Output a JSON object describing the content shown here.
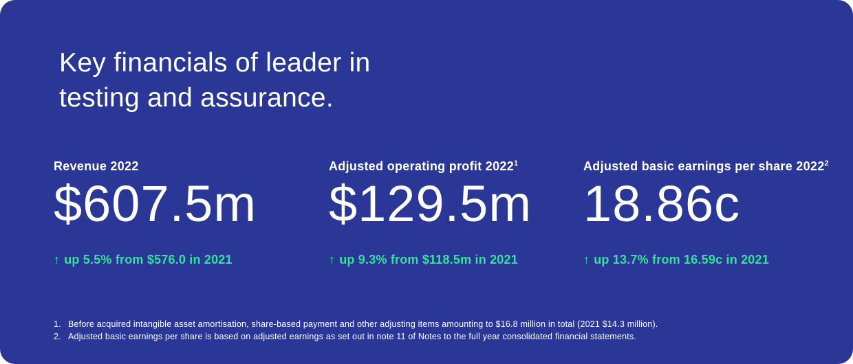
{
  "card": {
    "background_color": "#2a3797",
    "accent_green": "#36e0a1",
    "text_color": "#ffffff",
    "heading": "Key financials of leader in testing and assurance."
  },
  "metrics": [
    {
      "label": "Revenue 2022",
      "sup": "",
      "value": "$607.5m",
      "arrow_icon": "↑",
      "note": "up 5.5% from $576.0 in 2021"
    },
    {
      "label": "Adjusted operating profit 2022",
      "sup": "1",
      "value": "$129.5m",
      "arrow_icon": "↑",
      "note": "up 9.3% from $118.5m in 2021"
    },
    {
      "label": "Adjusted basic earnings per share 2022",
      "sup": "2",
      "value": "18.86c",
      "arrow_icon": "↑",
      "note": "up 13.7% from 16.59c in 2021"
    }
  ],
  "footnotes": [
    {
      "number": "1.",
      "text": "Before acquired intangible asset amortisation, share-based payment and other adjusting items amounting to $16.8 million in total (2021 $14.3 million)."
    },
    {
      "number": "2.",
      "text": "Adjusted basic earnings per share is based on adjusted earnings as set out in note 11 of Notes to the full year consolidated financial statements."
    }
  ]
}
